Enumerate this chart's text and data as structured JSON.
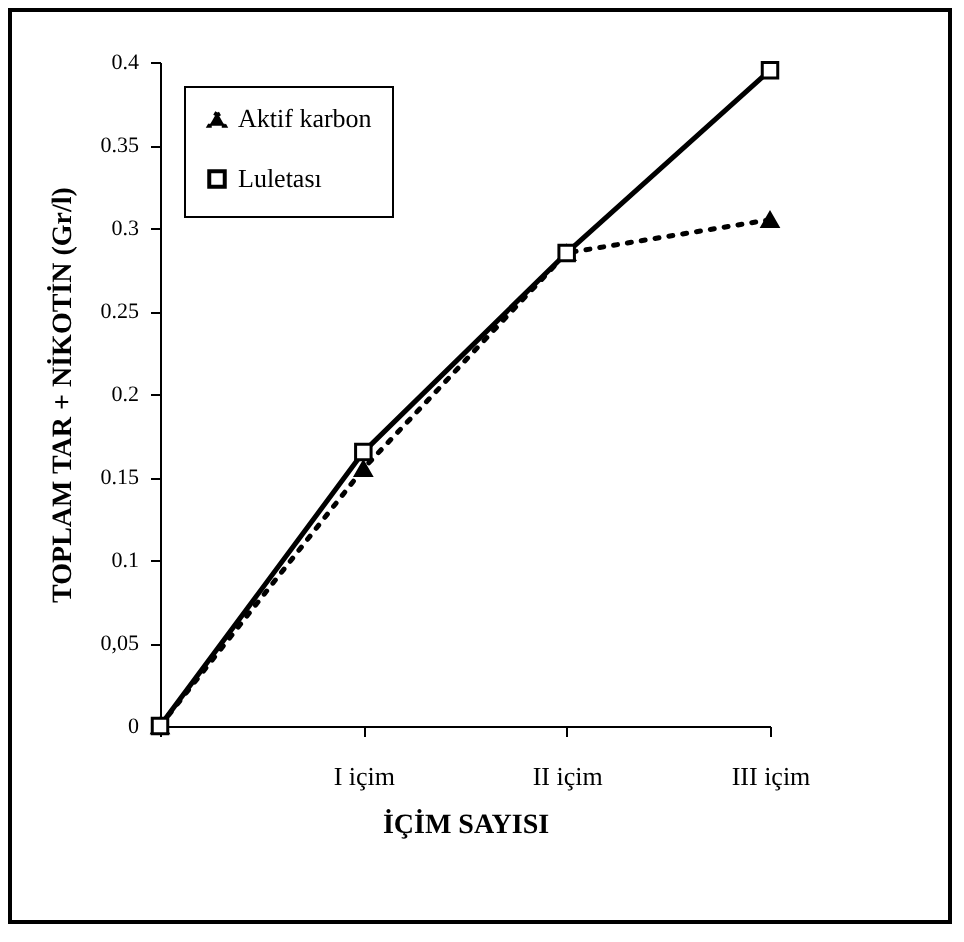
{
  "chart_data": {
    "type": "line",
    "xlabel": "İÇİM SAYISI",
    "ylabel": "TOPLAM TAR + NİKOTİN (Gr/l)",
    "categories": [
      null,
      "I içim",
      "II içim",
      "III içim"
    ],
    "series": [
      {
        "name": "Aktif karbon",
        "color": "#000000",
        "marker": "triangle",
        "line_style": "dotted",
        "values": [
          0,
          0.155,
          0.285,
          0.305
        ]
      },
      {
        "name": "Luletası",
        "color": "#000000",
        "marker": "square",
        "line_style": "solid",
        "values": [
          0,
          0.165,
          0.285,
          0.395
        ]
      }
    ],
    "ylim": [
      0,
      0.4
    ],
    "yticks": [
      0,
      {
        "value": 0.05,
        "label": "0,05"
      },
      0.1,
      0.15,
      0.2,
      0.25,
      0.3,
      0.35,
      0.4
    ],
    "grid": false,
    "legend": "top left"
  }
}
